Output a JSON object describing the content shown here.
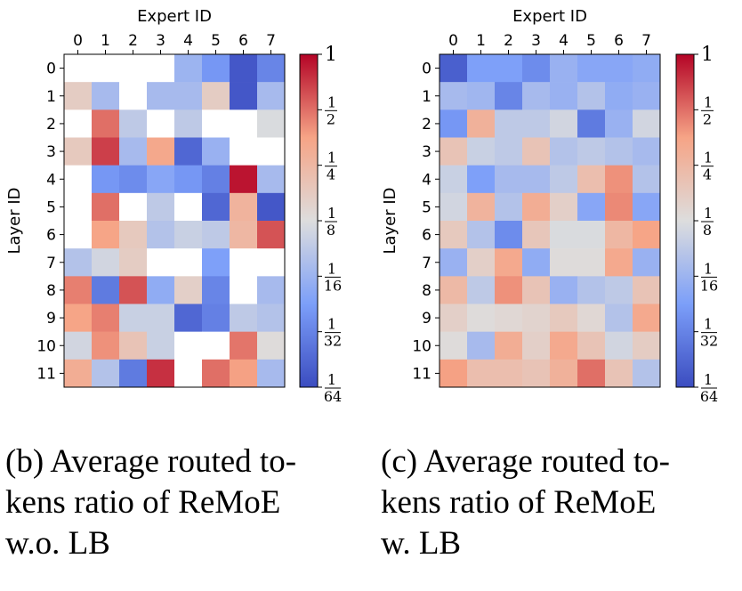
{
  "chart_data": [
    {
      "type": "heatmap",
      "xlabel": "Expert ID",
      "ylabel": "Layer ID",
      "x_ticks": [
        "0",
        "1",
        "2",
        "3",
        "4",
        "5",
        "6",
        "7"
      ],
      "y_ticks": [
        "0",
        "1",
        "2",
        "3",
        "4",
        "5",
        "6",
        "7",
        "8",
        "9",
        "10",
        "11"
      ],
      "color_scale": "log2",
      "colormap": "coolwarm",
      "colorbar_range": [
        0.015625,
        1
      ],
      "colorbar_ticks": [
        {
          "value": 1,
          "num": "1",
          "den": ""
        },
        {
          "value": 0.5,
          "num": "1",
          "den": "2"
        },
        {
          "value": 0.25,
          "num": "1",
          "den": "4"
        },
        {
          "value": 0.125,
          "num": "1",
          "den": "8"
        },
        {
          "value": 0.0625,
          "num": "1",
          "den": "16"
        },
        {
          "value": 0.03125,
          "num": "1",
          "den": "32"
        },
        {
          "value": 0.015625,
          "num": "1",
          "den": "64"
        }
      ],
      "values": [
        [
          0,
          0,
          0,
          0,
          0.0625,
          0.04,
          0.018,
          0.032
        ],
        [
          0.17,
          0.07,
          0,
          0.07,
          0.07,
          0.17,
          0.018,
          0.07
        ],
        [
          0,
          0.5,
          0.09,
          0,
          0.09,
          0,
          0,
          0.12
        ],
        [
          0.18,
          0.68,
          0.07,
          0.33,
          0.022,
          0.06,
          0,
          0
        ],
        [
          0,
          0.04,
          0.035,
          0.05,
          0.04,
          0.03,
          0.9,
          0.07
        ],
        [
          0,
          0.5,
          0,
          0.09,
          0,
          0.022,
          0.27,
          0.018
        ],
        [
          0,
          0.35,
          0.18,
          0.08,
          0.1,
          0.09,
          0.25,
          0.6
        ],
        [
          0.08,
          0.11,
          0.17,
          0,
          0,
          0.045,
          0,
          0
        ],
        [
          0.45,
          0.028,
          0.6,
          0.055,
          0.16,
          0.032,
          0,
          0.07
        ],
        [
          0.35,
          0.45,
          0.1,
          0.1,
          0.022,
          0.03,
          0.09,
          0.08
        ],
        [
          0.11,
          0.4,
          0.2,
          0.1,
          0,
          0,
          0.48,
          0.13
        ],
        [
          0.3,
          0.08,
          0.028,
          0.75,
          0,
          0.5,
          0.36,
          0.07
        ]
      ]
    },
    {
      "type": "heatmap",
      "xlabel": "Expert ID",
      "ylabel": "Layer ID",
      "x_ticks": [
        "0",
        "1",
        "2",
        "3",
        "4",
        "5",
        "6",
        "7"
      ],
      "y_ticks": [
        "0",
        "1",
        "2",
        "3",
        "4",
        "5",
        "6",
        "7",
        "8",
        "9",
        "10",
        "11"
      ],
      "color_scale": "log2",
      "colormap": "coolwarm",
      "colorbar_range": [
        0.015625,
        1
      ],
      "colorbar_ticks": [
        {
          "value": 1,
          "num": "1",
          "den": ""
        },
        {
          "value": 0.5,
          "num": "1",
          "den": "2"
        },
        {
          "value": 0.25,
          "num": "1",
          "den": "4"
        },
        {
          "value": 0.125,
          "num": "1",
          "den": "8"
        },
        {
          "value": 0.0625,
          "num": "1",
          "den": "16"
        },
        {
          "value": 0.03125,
          "num": "1",
          "den": "32"
        },
        {
          "value": 0.015625,
          "num": "1",
          "den": "64"
        }
      ],
      "values": [
        [
          0.02,
          0.045,
          0.045,
          0.035,
          0.06,
          0.05,
          0.05,
          0.055
        ],
        [
          0.07,
          0.065,
          0.032,
          0.07,
          0.06,
          0.08,
          0.055,
          0.06
        ],
        [
          0.04,
          0.28,
          0.09,
          0.09,
          0.11,
          0.028,
          0.06,
          0.11
        ],
        [
          0.2,
          0.1,
          0.09,
          0.2,
          0.08,
          0.09,
          0.08,
          0.07
        ],
        [
          0.1,
          0.045,
          0.07,
          0.07,
          0.09,
          0.22,
          0.4,
          0.08
        ],
        [
          0.11,
          0.27,
          0.08,
          0.3,
          0.16,
          0.05,
          0.42,
          0.05
        ],
        [
          0.18,
          0.08,
          0.035,
          0.19,
          0.12,
          0.12,
          0.25,
          0.35
        ],
        [
          0.06,
          0.16,
          0.32,
          0.055,
          0.13,
          0.13,
          0.32,
          0.06
        ],
        [
          0.24,
          0.09,
          0.4,
          0.2,
          0.06,
          0.08,
          0.09,
          0.2
        ],
        [
          0.16,
          0.13,
          0.14,
          0.15,
          0.18,
          0.14,
          0.08,
          0.32
        ],
        [
          0.13,
          0.07,
          0.3,
          0.16,
          0.32,
          0.2,
          0.11,
          0.17
        ],
        [
          0.36,
          0.22,
          0.22,
          0.2,
          0.28,
          0.5,
          0.2,
          0.08
        ]
      ]
    }
  ],
  "captions": [
    {
      "lines": [
        "(b) Average routed to-",
        "kens  ratio  of  ReMoE",
        "w.o. LB"
      ]
    },
    {
      "lines": [
        "(c) Average routed to-",
        "kens  ratio  of  ReMoE",
        "w. LB"
      ]
    }
  ]
}
